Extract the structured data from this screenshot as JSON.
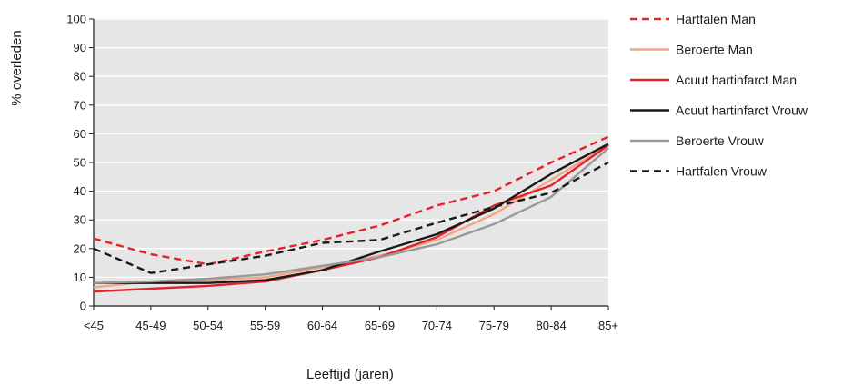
{
  "chart_data": {
    "type": "line",
    "title": "",
    "xlabel": "Leeftijd (jaren)",
    "ylabel": "% overleden",
    "ylim": [
      0,
      100
    ],
    "yticks": [
      0,
      10,
      20,
      30,
      40,
      50,
      60,
      70,
      80,
      90,
      100
    ],
    "categories": [
      "<45",
      "45-49",
      "50-54",
      "55-59",
      "60-64",
      "65-69",
      "70-74",
      "75-79",
      "80-84",
      "85+"
    ],
    "grid": true,
    "legend_position": "right",
    "plot_background": "#e6e6e7",
    "series": [
      {
        "name": "Hartfalen Man",
        "color": "#e3232b",
        "dash": "dashed",
        "values": [
          23.5,
          18,
          14.5,
          19,
          23,
          28,
          35,
          40,
          50,
          59
        ]
      },
      {
        "name": "Beroerte Man",
        "color": "#f4a584",
        "dash": "solid",
        "values": [
          6.5,
          8.5,
          9,
          10,
          13.5,
          17.5,
          23,
          32,
          44,
          56
        ]
      },
      {
        "name": "Acuut hartinfarct Man",
        "color": "#e3232b",
        "dash": "solid",
        "values": [
          5,
          6,
          7,
          8.5,
          12.5,
          17,
          24,
          35,
          42,
          56
        ]
      },
      {
        "name": "Acuut hartinfarct Vrouw",
        "color": "#1a1a1a",
        "dash": "solid",
        "values": [
          8,
          8,
          8,
          9,
          12.5,
          19,
          25,
          34,
          46,
          56.5
        ]
      },
      {
        "name": "Beroerte Vrouw",
        "color": "#999999",
        "dash": "solid",
        "values": [
          8,
          8.5,
          9.5,
          11,
          14,
          17,
          21.5,
          28.5,
          38,
          55
        ]
      },
      {
        "name": "Hartfalen Vrouw",
        "color": "#1a1a1a",
        "dash": "dashed",
        "values": [
          20,
          11.5,
          14.5,
          17.5,
          22,
          23,
          29,
          34.5,
          39.5,
          50
        ]
      }
    ]
  }
}
